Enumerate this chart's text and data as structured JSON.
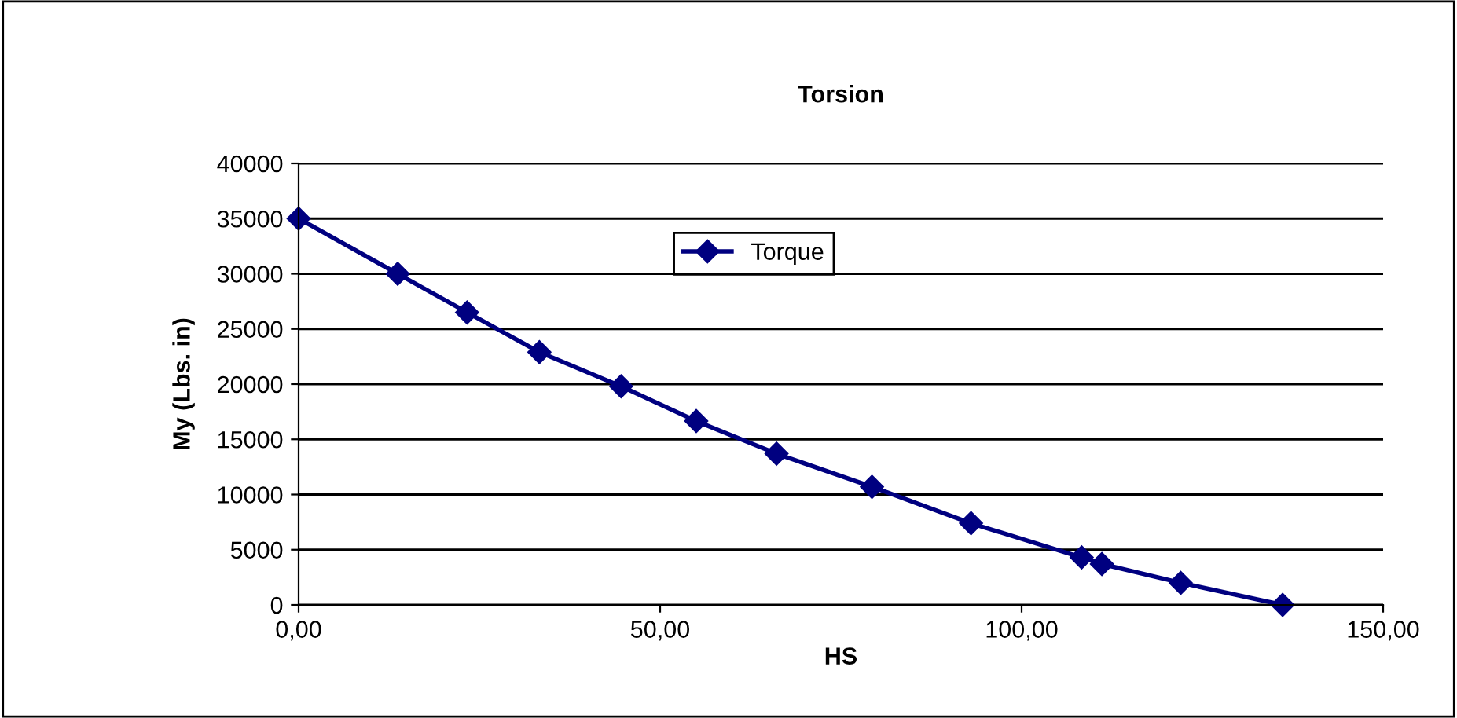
{
  "chart_data": {
    "type": "line",
    "title": "Torsion",
    "xlabel": "HS",
    "ylabel": "My (Lbs. in)",
    "x": [
      0,
      13.7,
      23.3,
      33.3,
      44.6,
      55.0,
      66.1,
      79.3,
      93.0,
      108.3,
      111.1,
      122.0,
      136.1
    ],
    "series": [
      {
        "name": "Torque",
        "color": "#000080",
        "values": [
          35000,
          30000,
          26500,
          22900,
          19800,
          16650,
          13700,
          10700,
          7400,
          4300,
          3700,
          2000,
          0
        ]
      }
    ],
    "xlim": [
      0,
      150
    ],
    "xticks": [
      {
        "value": 0,
        "label": "0,00"
      },
      {
        "value": 50,
        "label": "50,00"
      },
      {
        "value": 100,
        "label": "100,00"
      },
      {
        "value": 150,
        "label": "150,00"
      }
    ],
    "ylim": [
      0,
      40000
    ],
    "yticks": [
      0,
      5000,
      10000,
      15000,
      20000,
      25000,
      30000,
      35000,
      40000
    ],
    "grid": "y",
    "legend": "top",
    "marker": "diamond",
    "line_style": "solid"
  }
}
